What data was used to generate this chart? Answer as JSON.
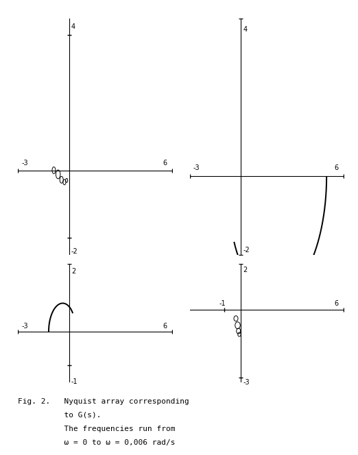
{
  "caption_line1": "Fig. 2.   Nyquist array corresponding",
  "caption_line2": "          to G(s).",
  "caption_line3": "          The frequencies run from",
  "caption_line4": "          ω = 0 to ω = 0,006 rad/s",
  "lw": 1.1,
  "color": "#000000",
  "background": "#ffffff",
  "g11_xlim": [
    -3,
    6
  ],
  "g11_ylim": [
    -2.5,
    4.5
  ],
  "g12_xlim": [
    -3,
    6
  ],
  "g12_ylim": [
    -2,
    4
  ],
  "g21_xlim": [
    -3,
    6
  ],
  "g21_ylim": [
    -1.5,
    2
  ],
  "g22_xlim": [
    -3,
    6
  ],
  "g22_ylim": [
    -3.2,
    2
  ]
}
